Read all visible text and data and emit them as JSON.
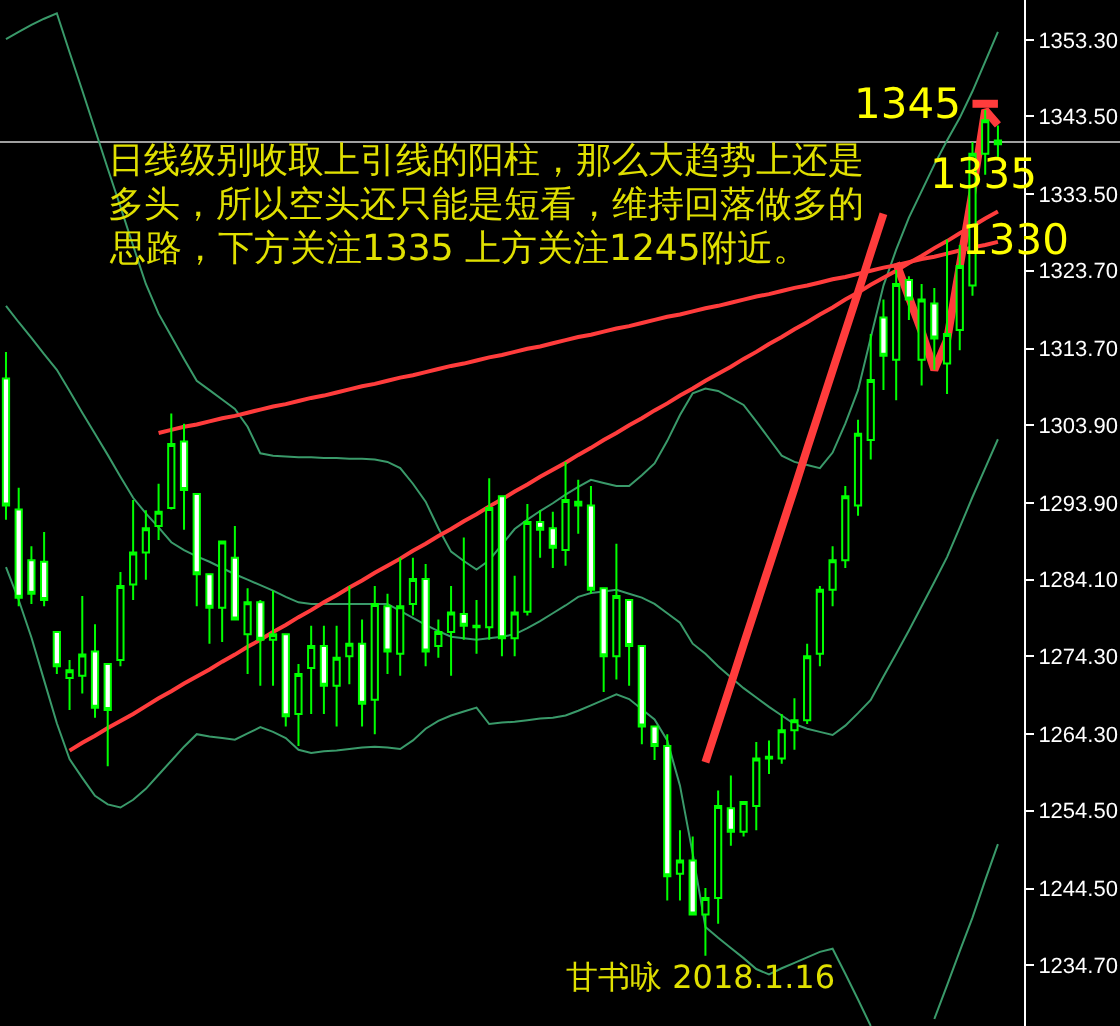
{
  "chart_data": {
    "type": "candlestick",
    "color": "#00ff00",
    "categories": [
      null,
      null,
      null,
      null,
      null,
      null,
      null,
      null,
      null,
      null,
      null,
      null,
      null,
      null,
      null,
      null,
      null,
      null,
      null,
      null,
      null,
      null,
      null,
      null,
      null,
      null,
      null,
      null,
      null,
      null,
      null,
      null,
      null,
      null,
      null,
      null,
      null,
      null,
      null,
      null,
      null,
      null,
      null,
      null,
      null,
      null,
      null,
      null,
      null,
      null,
      null,
      null,
      null,
      null,
      null,
      null,
      null,
      null,
      null,
      null,
      null,
      null,
      null,
      null,
      null,
      null,
      null,
      null,
      null,
      null,
      null,
      null,
      null,
      null,
      null,
      null,
      null,
      null,
      null
    ],
    "ohlc": [
      [
        1309.9,
        1313.3,
        1291.8,
        1293.6
      ],
      [
        1293.1,
        1295.9,
        1280.7,
        1281.8
      ],
      [
        1286.6,
        1288.4,
        1281.0,
        1282.3
      ],
      [
        1286.4,
        1290.2,
        1280.7,
        1281.5
      ],
      [
        1277.4,
        1277.4,
        1272.0,
        1273.0
      ],
      [
        1271.5,
        1273.8,
        1267.4,
        1272.5
      ],
      [
        1271.8,
        1282.0,
        1269.5,
        1274.5
      ],
      [
        1274.9,
        1278.4,
        1266.4,
        1267.7
      ],
      [
        1273.3,
        1273.3,
        1260.2,
        1267.4
      ],
      [
        1273.8,
        1285.1,
        1273.0,
        1283.3
      ],
      [
        1283.5,
        1294.3,
        1281.5,
        1287.6
      ],
      [
        1287.6,
        1293.0,
        1284.1,
        1290.7
      ],
      [
        1291.0,
        1296.4,
        1289.2,
        1292.8
      ],
      [
        1293.3,
        1305.4,
        1293.1,
        1301.5
      ],
      [
        1301.8,
        1304.1,
        1290.5,
        1295.6
      ],
      [
        1295.1,
        1295.1,
        1280.7,
        1284.8
      ],
      [
        1284.8,
        1284.8,
        1275.9,
        1280.5
      ],
      [
        1280.5,
        1289.0,
        1276.1,
        1289.0
      ],
      [
        1286.9,
        1291.0,
        1279.0,
        1279.0
      ],
      [
        1277.1,
        1283.0,
        1272.0,
        1281.2
      ],
      [
        1281.2,
        1281.5,
        1270.5,
        1276.4
      ],
      [
        1276.4,
        1282.7,
        1270.5,
        1277.1
      ],
      [
        1277.1,
        1277.1,
        1265.3,
        1266.6
      ],
      [
        1266.9,
        1273.3,
        1262.8,
        1272.0
      ],
      [
        1272.8,
        1278.2,
        1266.9,
        1275.6
      ],
      [
        1275.6,
        1278.2,
        1266.9,
        1270.5
      ],
      [
        1270.5,
        1278.2,
        1265.3,
        1274.1
      ],
      [
        1274.3,
        1283.3,
        1270.7,
        1275.9
      ],
      [
        1275.9,
        1279.0,
        1265.3,
        1268.2
      ],
      [
        1268.7,
        1283.3,
        1264.3,
        1281.0
      ],
      [
        1280.7,
        1282.3,
        1272.0,
        1274.9
      ],
      [
        1274.6,
        1286.9,
        1271.8,
        1280.7
      ],
      [
        1281.0,
        1286.9,
        1279.5,
        1284.2
      ],
      [
        1284.2,
        1286.1,
        1273.0,
        1274.9
      ],
      [
        1275.6,
        1279.0,
        1274.1,
        1277.4
      ],
      [
        1277.4,
        1283.3,
        1271.8,
        1279.9
      ],
      [
        1279.7,
        1289.5,
        1276.4,
        1278.2
      ],
      [
        1278.0,
        1281.5,
        1274.6,
        1278.2
      ],
      [
        1278.0,
        1297.1,
        1276.4,
        1293.3
      ],
      [
        1294.8,
        1294.8,
        1274.3,
        1276.6
      ],
      [
        1276.6,
        1284.6,
        1274.3,
        1279.9
      ],
      [
        1280.0,
        1293.8,
        1279.5,
        1291.5
      ],
      [
        1291.5,
        1293.0,
        1286.9,
        1290.5
      ],
      [
        1290.7,
        1292.8,
        1285.6,
        1288.2
      ],
      [
        1287.9,
        1299.2,
        1285.9,
        1294.3
      ],
      [
        1294.1,
        1296.9,
        1290.0,
        1293.6
      ],
      [
        1293.6,
        1296.1,
        1282.3,
        1282.8
      ],
      [
        1283.0,
        1283.0,
        1269.7,
        1274.3
      ],
      [
        1274.3,
        1288.7,
        1271.3,
        1282.0
      ],
      [
        1281.5,
        1281.5,
        1270.5,
        1275.6
      ],
      [
        1275.6,
        1275.6,
        1263.0,
        1265.3
      ],
      [
        1265.3,
        1265.3,
        1261.0,
        1262.8
      ],
      [
        1262.8,
        1264.3,
        1243.0,
        1246.1
      ],
      [
        1246.4,
        1252.0,
        1243.0,
        1248.1
      ],
      [
        1248.1,
        1251.2,
        1241.2,
        1241.2
      ],
      [
        1241.2,
        1244.6,
        1235.9,
        1243.3
      ],
      [
        1243.3,
        1257.1,
        1240.0,
        1255.1
      ],
      [
        1254.8,
        1259.0,
        1250.0,
        1251.8
      ],
      [
        1251.8,
        1255.6,
        1251.2,
        1255.6
      ],
      [
        1255.1,
        1263.3,
        1252.0,
        1261.2
      ],
      [
        1261.2,
        1263.5,
        1259.2,
        1261.4
      ],
      [
        1261.2,
        1266.9,
        1260.5,
        1264.8
      ],
      [
        1264.8,
        1268.9,
        1262.3,
        1266.1
      ],
      [
        1266.1,
        1275.9,
        1265.6,
        1274.3
      ],
      [
        1274.6,
        1283.3,
        1273.0,
        1282.8
      ],
      [
        1282.8,
        1288.4,
        1280.7,
        1286.6
      ],
      [
        1286.6,
        1296.1,
        1285.6,
        1294.8
      ],
      [
        1293.6,
        1304.6,
        1292.3,
        1302.8
      ],
      [
        1302.0,
        1315.6,
        1299.5,
        1309.7
      ],
      [
        1317.7,
        1320.0,
        1308.4,
        1312.8
      ],
      [
        1312.3,
        1323.8,
        1307.1,
        1322.0
      ],
      [
        1322.5,
        1323.0,
        1317.4,
        1320.0
      ],
      [
        1312.3,
        1322.0,
        1309.0,
        1320.0
      ],
      [
        1319.5,
        1321.5,
        1311.0,
        1315.0
      ],
      [
        1311.8,
        1327.7,
        1307.9,
        1315.6
      ],
      [
        1316.1,
        1327.0,
        1313.5,
        1324.3
      ],
      [
        1321.8,
        1340.2,
        1320.5,
        1338.7
      ],
      [
        1338.7,
        1344.3,
        1336.0,
        1343.0
      ],
      [
        1339.9,
        1342.3,
        1337.9,
        1340.4
      ]
    ],
    "series": [
      {
        "type": "line",
        "color": "#3a9a6a",
        "values": [
          1353.4,
          1354.3,
          1355.2,
          1356.0,
          1356.7,
          1351.7,
          1346.8,
          1341.8,
          1336.8,
          1331.9,
          1326.9,
          1322.0,
          1318.2,
          1315.3,
          1312.4,
          1309.6,
          1308.4,
          1307.2,
          1306.0,
          1303.7,
          1300.3,
          1300.0,
          1299.9,
          1299.8,
          1299.8,
          1299.7,
          1299.7,
          1299.6,
          1299.6,
          1299.5,
          1299.2,
          1298.4,
          1296.4,
          1294.1,
          1290.7,
          1287.7,
          1286.5,
          1285.4,
          1286.6,
          1288.6,
          1290.6,
          1291.8,
          1292.9,
          1293.9,
          1295.0,
          1296.0,
          1296.9,
          1296.5,
          1296.1,
          1296.1,
          1297.5,
          1299.0,
          1301.9,
          1305.2,
          1308.0,
          1308.6,
          1308.3,
          1307.4,
          1306.5,
          1304.4,
          1302.2,
          1300.0,
          1299.2,
          1298.8,
          1298.4,
          1300.4,
          1304.1,
          1308.4,
          1315.1,
          1321.8,
          1326.4,
          1330.5,
          1333.9,
          1337.3,
          1340.4,
          1343.3,
          1346.7,
          1350.5,
          1354.3
        ]
      },
      {
        "type": "line",
        "color": "#3a9a6a",
        "values": [
          1319.2,
          1317.1,
          1315.1,
          1313.0,
          1311.0,
          1308.3,
          1305.5,
          1302.8,
          1300.1,
          1297.3,
          1294.6,
          1292.6,
          1290.8,
          1288.9,
          1287.9,
          1287.1,
          1286.4,
          1285.6,
          1284.8,
          1284.1,
          1283.4,
          1282.7,
          1281.9,
          1281.2,
          1281.0,
          1281.0,
          1281.0,
          1281.0,
          1281.0,
          1281.0,
          1281.0,
          1280.1,
          1279.2,
          1278.3,
          1277.5,
          1276.8,
          1276.6,
          1276.4,
          1276.6,
          1276.8,
          1277.1,
          1277.9,
          1278.8,
          1279.8,
          1280.8,
          1281.9,
          1282.4,
          1282.6,
          1282.8,
          1282.3,
          1281.8,
          1281.0,
          1279.8,
          1278.6,
          1275.9,
          1274.6,
          1273.0,
          1271.6,
          1270.2,
          1269.0,
          1267.8,
          1266.7,
          1265.6,
          1265.0,
          1264.6,
          1264.2,
          1265.4,
          1267.0,
          1268.7,
          1271.7,
          1274.6,
          1277.6,
          1280.7,
          1283.8,
          1287.0,
          1290.8,
          1294.7,
          1298.4,
          1302.1
        ]
      },
      {
        "type": "line",
        "color": "#3a9a6a",
        "values": [
          1285.7,
          1281.5,
          1276.7,
          1271.2,
          1265.7,
          1261.1,
          1258.7,
          1256.4,
          1255.3,
          1254.9,
          1255.9,
          1257.3,
          1259.1,
          1260.9,
          1262.7,
          1264.3,
          1264.0,
          1263.8,
          1263.6,
          1264.4,
          1265.2,
          1264.6,
          1263.8,
          1262.3,
          1261.9,
          1262.1,
          1262.2,
          1262.4,
          1262.6,
          1262.7,
          1262.6,
          1262.4,
          1263.5,
          1265.0,
          1266.0,
          1266.7,
          1267.2,
          1267.7,
          1265.6,
          1265.8,
          1265.9,
          1266.1,
          1266.3,
          1266.4,
          1266.7,
          1267.3,
          1268.0,
          1268.7,
          1269.4,
          1268.8,
          1267.5,
          1266.2,
          1263.5,
          1257.7,
          1249.0,
          1239.6,
          1238.2,
          1236.9,
          1235.6,
          1234.2,
          1233.5,
          1234.3,
          1235.0,
          1235.7,
          1236.4,
          1236.8,
          1233.6,
          1230.3,
          1226.9,
          null,
          null,
          null,
          null,
          1227.8,
          1232.1,
          1236.5,
          1240.8,
          1245.6,
          1250.2
        ]
      },
      {
        "type": "line",
        "color": "#ff3c3c",
        "values": [
          null,
          null,
          null,
          null,
          null,
          1262.2,
          1263.2,
          1264.1,
          1265.1,
          1266.0,
          1266.9,
          1267.9,
          1268.9,
          1269.8,
          1270.8,
          1271.7,
          1272.6,
          1273.6,
          1274.5,
          1275.5,
          1276.4,
          1277.4,
          1278.3,
          1279.3,
          1280.2,
          1281.2,
          1282.1,
          1283.1,
          1284.0,
          1285.0,
          1285.9,
          1286.8,
          1287.8,
          1288.7,
          1289.7,
          1290.6,
          1291.6,
          1292.5,
          1293.5,
          1294.4,
          1295.4,
          1296.3,
          1297.3,
          1298.2,
          1299.1,
          1300.1,
          1301.0,
          1302.0,
          1302.9,
          1303.9,
          1304.8,
          1305.8,
          1306.7,
          1307.7,
          1308.6,
          1309.6,
          1310.5,
          1311.4,
          1312.4,
          1313.3,
          1314.3,
          1315.2,
          1316.2,
          1317.1,
          1318.1,
          1319.0,
          1320.0,
          1320.9,
          1321.9,
          1322.8,
          1323.7,
          1324.7,
          1325.6,
          1326.6,
          1327.5,
          1328.5,
          1329.4,
          1330.4,
          1331.3
        ]
      },
      {
        "type": "line",
        "color": "#ff3c3c",
        "values": [
          null,
          null,
          null,
          null,
          null,
          null,
          null,
          null,
          null,
          null,
          null,
          null,
          1302.9,
          1303.3,
          1303.7,
          1304.0,
          1304.4,
          1304.8,
          1305.1,
          1305.5,
          1305.9,
          1306.3,
          1306.6,
          1307.0,
          1307.4,
          1307.7,
          1308.1,
          1308.5,
          1308.9,
          1309.2,
          1309.6,
          1310.0,
          1310.3,
          1310.7,
          1311.1,
          1311.5,
          1311.8,
          1312.2,
          1312.6,
          1312.9,
          1313.3,
          1313.7,
          1314.0,
          1314.4,
          1314.8,
          1315.2,
          1315.5,
          1315.9,
          1316.3,
          1316.6,
          1317.0,
          1317.4,
          1317.8,
          1318.1,
          1318.5,
          1318.9,
          1319.2,
          1319.6,
          1320.0,
          1320.4,
          1320.7,
          1321.1,
          1321.5,
          1321.8,
          1322.2,
          1322.6,
          1322.9,
          1323.3,
          1323.7,
          1324.1,
          1324.4,
          1324.8,
          1325.2,
          1325.5,
          1325.9,
          1326.3,
          1326.7,
          1327.0,
          1327.4
        ]
      },
      {
        "type": "line",
        "color": "#ff3c3c",
        "values": [
          null,
          null,
          null,
          null,
          null,
          null,
          null,
          null,
          null,
          null,
          null,
          null,
          null,
          null,
          null,
          null,
          null,
          null,
          null,
          null,
          null,
          null,
          null,
          null,
          null,
          null,
          null,
          null,
          null,
          null,
          null,
          null,
          null,
          null,
          null,
          null,
          null,
          null,
          null,
          null,
          null,
          null,
          null,
          null,
          null,
          null,
          null,
          null,
          null,
          null,
          null,
          null,
          null,
          null,
          null,
          1260.7,
          1265.7,
          1270.7,
          1275.8,
          1280.8,
          1285.8,
          1290.8,
          1295.8,
          1300.9,
          1305.9,
          1310.9,
          1315.9,
          1320.9,
          1326.0,
          1331.0,
          null,
          null,
          null,
          null,
          null,
          null,
          null,
          null,
          null
        ]
      },
      {
        "type": "line",
        "color": "#ff3c3c",
        "values": [
          null,
          null,
          null,
          null,
          null,
          null,
          null,
          null,
          null,
          null,
          null,
          null,
          null,
          null,
          null,
          null,
          null,
          null,
          null,
          null,
          null,
          null,
          null,
          null,
          null,
          null,
          null,
          null,
          null,
          null,
          null,
          null,
          null,
          null,
          null,
          null,
          null,
          null,
          null,
          null,
          null,
          null,
          null,
          null,
          null,
          null,
          null,
          null,
          null,
          null,
          null,
          null,
          null,
          null,
          null,
          null,
          null,
          null,
          null,
          null,
          null,
          null,
          null,
          null,
          null,
          null,
          null,
          null,
          null,
          null,
          1324.7,
          1320.3,
          1315.9,
          1311.0,
          1314.8,
          1324.3,
          1333.8,
          1344.3,
          1342.4
        ]
      },
      {
        "type": "line",
        "color": "#ff3c3c",
        "values": [
          null,
          null,
          null,
          null,
          null,
          null,
          null,
          null,
          null,
          null,
          null,
          null,
          null,
          null,
          null,
          null,
          null,
          null,
          null,
          null,
          null,
          null,
          null,
          null,
          null,
          null,
          null,
          null,
          null,
          null,
          null,
          null,
          null,
          null,
          null,
          null,
          null,
          null,
          null,
          null,
          null,
          null,
          null,
          null,
          null,
          null,
          null,
          null,
          null,
          null,
          null,
          null,
          null,
          null,
          null,
          null,
          null,
          null,
          null,
          null,
          null,
          null,
          null,
          null,
          null,
          null,
          null,
          null,
          null,
          null,
          null,
          null,
          null,
          null,
          null,
          null,
          1345.1,
          1345.1,
          1345.1
        ]
      }
    ],
    "ref_lines": [
      {
        "axis": "y",
        "value": 1340.2,
        "color": "#a0a0a0"
      }
    ],
    "ylim": [
      1226.9,
      1358.4
    ],
    "yticks": [
      {
        "value": 1353.3,
        "label": "1353.30"
      },
      {
        "value": 1343.5,
        "label": "1343.50"
      },
      {
        "value": 1333.5,
        "label": "1333.50"
      },
      {
        "value": 1323.7,
        "label": "1323.70"
      },
      {
        "value": 1313.7,
        "label": "1313.70"
      },
      {
        "value": 1303.9,
        "label": "1303.90"
      },
      {
        "value": 1293.9,
        "label": "1293.90"
      },
      {
        "value": 1284.1,
        "label": "1284.10"
      },
      {
        "value": 1274.3,
        "label": "1274.30"
      },
      {
        "value": 1264.3,
        "label": "1264.30"
      },
      {
        "value": 1254.5,
        "label": "1254.50"
      },
      {
        "value": 1244.5,
        "label": "1244.50"
      },
      {
        "value": 1234.7,
        "label": "1234.70"
      }
    ],
    "tick_labels": "y",
    "annotations": [
      "日线级别收取上引线的阳柱，那么大趋势上还是",
      "多头，所以空头还只能是短看，维持回落做多的",
      "思路，下方关注1335 上方关注1245附近。",
      "1345",
      "1335",
      "1330",
      "甘书咏 2018.1.16"
    ]
  }
}
